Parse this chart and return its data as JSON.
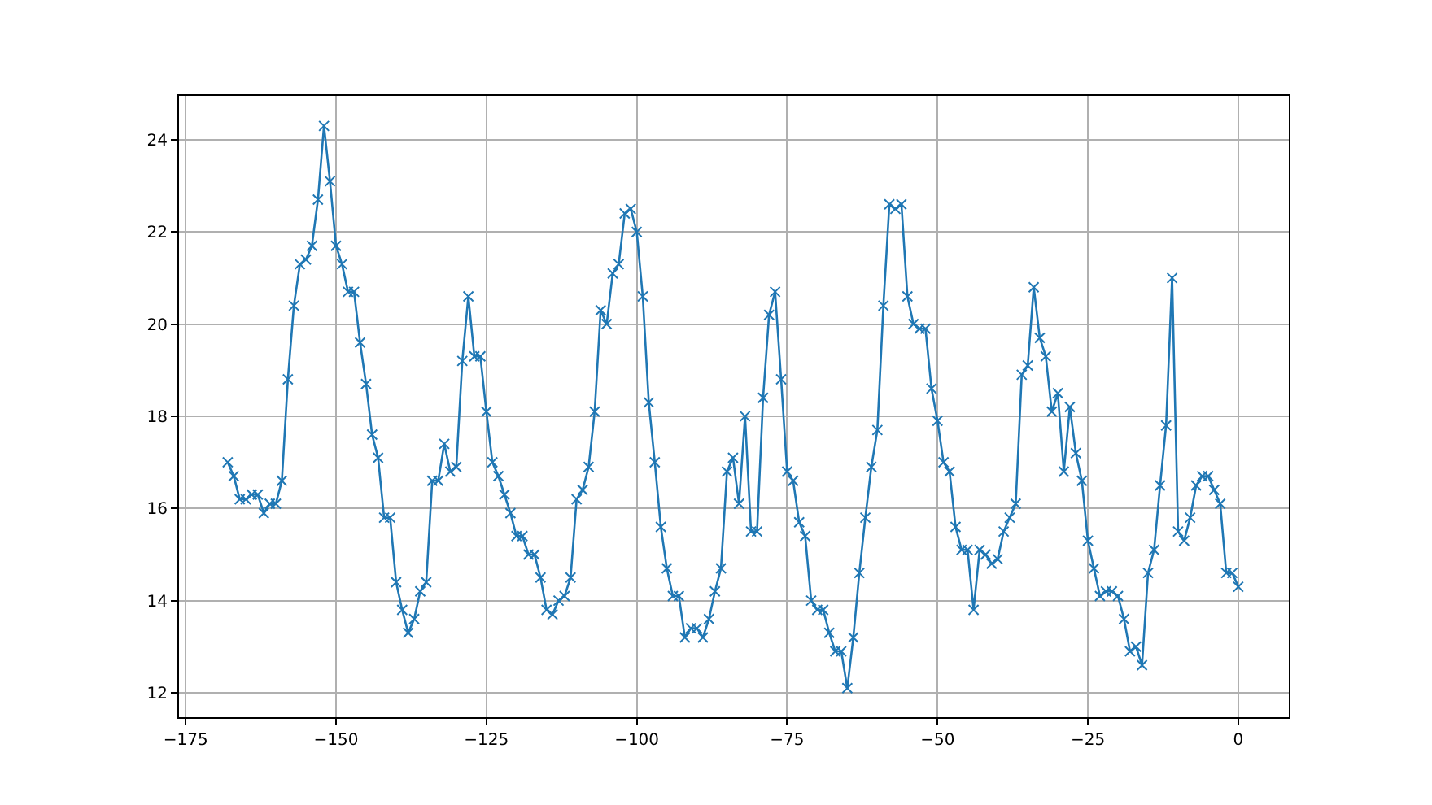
{
  "chart_data": {
    "type": "line",
    "marker": "cross",
    "grid": true,
    "x": [
      -168,
      -167,
      -166,
      -165,
      -164,
      -163,
      -162,
      -161,
      -160,
      -159,
      -158,
      -157,
      -156,
      -155,
      -154,
      -153,
      -152,
      -151,
      -150,
      -149,
      -148,
      -147,
      -146,
      -145,
      -144,
      -143,
      -142,
      -141,
      -140,
      -139,
      -138,
      -137,
      -136,
      -135,
      -134,
      -133,
      -132,
      -131,
      -130,
      -129,
      -128,
      -127,
      -126,
      -125,
      -124,
      -123,
      -122,
      -121,
      -120,
      -119,
      -118,
      -117,
      -116,
      -115,
      -114,
      -113,
      -112,
      -111,
      -110,
      -109,
      -108,
      -107,
      -106,
      -105,
      -104,
      -103,
      -102,
      -101,
      -100,
      -99,
      -98,
      -97,
      -96,
      -95,
      -94,
      -93,
      -92,
      -91,
      -90,
      -89,
      -88,
      -87,
      -86,
      -85,
      -84,
      -83,
      -82,
      -81,
      -80,
      -79,
      -78,
      -77,
      -76,
      -75,
      -74,
      -73,
      -72,
      -71,
      -70,
      -69,
      -68,
      -67,
      -66,
      -65,
      -64,
      -63,
      -62,
      -61,
      -60,
      -59,
      -58,
      -57,
      -56,
      -55,
      -54,
      -53,
      -52,
      -51,
      -50,
      -49,
      -48,
      -47,
      -46,
      -45,
      -44,
      -43,
      -42,
      -41,
      -40,
      -39,
      -38,
      -37,
      -36,
      -35,
      -34,
      -33,
      -32,
      -31,
      -30,
      -29,
      -28,
      -27,
      -26,
      -25,
      -24,
      -23,
      -22,
      -21,
      -20,
      -19,
      -18,
      -17,
      -16,
      -15,
      -14,
      -13,
      -12,
      -11,
      -10,
      -9,
      -8,
      -7,
      -6,
      -5,
      -4,
      -3,
      -2,
      -1,
      0
    ],
    "series": [
      {
        "color": "#1f77b4",
        "values": [
          17.0,
          16.7,
          16.2,
          16.2,
          16.3,
          16.3,
          15.9,
          16.1,
          16.1,
          16.6,
          18.8,
          20.4,
          21.3,
          21.4,
          21.7,
          22.7,
          24.3,
          23.1,
          21.7,
          21.3,
          20.7,
          20.7,
          19.6,
          18.7,
          17.6,
          17.1,
          15.8,
          15.8,
          14.4,
          13.8,
          13.3,
          13.6,
          14.2,
          14.4,
          16.6,
          16.6,
          17.4,
          16.8,
          16.9,
          19.2,
          20.6,
          19.3,
          19.3,
          18.1,
          17.0,
          16.7,
          16.3,
          15.9,
          15.4,
          15.4,
          15.0,
          15.0,
          14.5,
          13.8,
          13.7,
          14.0,
          14.1,
          14.5,
          16.2,
          16.4,
          16.9,
          18.1,
          20.3,
          20.0,
          21.1,
          21.3,
          22.4,
          22.5,
          22.0,
          20.6,
          18.3,
          17.0,
          15.6,
          14.7,
          14.1,
          14.1,
          13.2,
          13.4,
          13.4,
          13.2,
          13.6,
          14.2,
          14.7,
          16.8,
          17.1,
          16.1,
          18.0,
          15.5,
          15.5,
          18.4,
          20.2,
          20.7,
          18.8,
          16.8,
          16.6,
          15.7,
          15.4,
          14.0,
          13.8,
          13.8,
          13.3,
          12.9,
          12.9,
          12.1,
          13.2,
          14.6,
          15.8,
          16.9,
          17.7,
          20.4,
          22.6,
          22.5,
          22.6,
          20.6,
          20.0,
          19.9,
          19.9,
          18.6,
          17.9,
          17.0,
          16.8,
          15.6,
          15.1,
          15.1,
          13.8,
          15.1,
          15.0,
          14.8,
          14.9,
          15.5,
          15.8,
          16.1,
          18.9,
          19.1,
          20.8,
          19.7,
          19.3,
          18.1,
          18.5,
          16.8,
          18.2,
          17.2,
          16.6,
          15.3,
          14.7,
          14.1,
          14.2,
          14.2,
          14.1,
          13.6,
          12.9,
          13.0,
          12.6,
          14.6,
          15.1,
          16.5,
          17.8,
          21.0,
          15.5,
          15.3,
          15.8,
          16.5,
          16.7,
          16.7,
          16.4,
          16.1,
          14.6,
          14.6,
          14.3
        ]
      }
    ],
    "xlim": [
      -176.1,
      8.4
    ],
    "ylim": [
      11.47,
      24.95
    ],
    "xticks": [
      {
        "value": -175,
        "label": "−175"
      },
      {
        "value": -150,
        "label": "−150"
      },
      {
        "value": -125,
        "label": "−125"
      },
      {
        "value": -100,
        "label": "−100"
      },
      {
        "value": -75,
        "label": "−75"
      },
      {
        "value": -50,
        "label": "−50"
      },
      {
        "value": -25,
        "label": "−25"
      },
      0
    ],
    "yticks": [
      12,
      14,
      16,
      18,
      20,
      22,
      24
    ]
  }
}
